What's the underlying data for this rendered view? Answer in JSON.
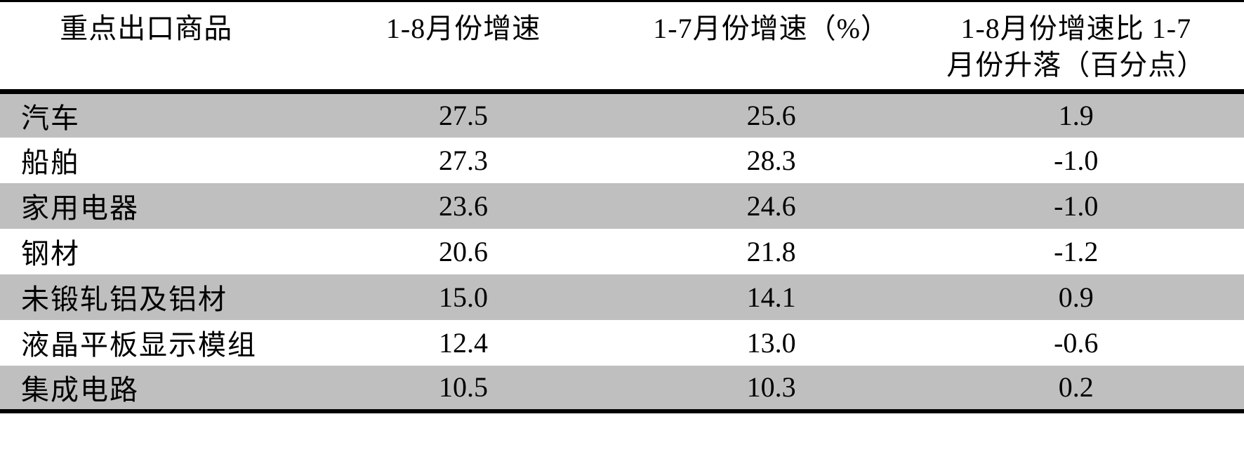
{
  "colors": {
    "row_shade": "#bfbfbf",
    "border": "#000000",
    "background": "#ffffff"
  },
  "table": {
    "headers": {
      "col1": "重点出口商品",
      "col2": "1-8月份增速",
      "col3": "1-7月份增速（%）",
      "col4_line1": "1-8月份增速比 1-7",
      "col4_line2": "月份升落（百分点）"
    },
    "rows": [
      [
        "汽车",
        "27.5",
        "25.6",
        "1.9"
      ],
      [
        "船舶",
        "27.3",
        "28.3",
        "-1.0"
      ],
      [
        "家用电器",
        "23.6",
        "24.6",
        "-1.0"
      ],
      [
        "钢材",
        "20.6",
        "21.8",
        "-1.2"
      ],
      [
        "未锻轧铝及铝材",
        "15.0",
        "14.1",
        "0.9"
      ],
      [
        "液晶平板显示模组",
        "12.4",
        "13.0",
        "-0.6"
      ],
      [
        "集成电路",
        "10.5",
        "10.3",
        "0.2"
      ]
    ]
  },
  "chart_data": {
    "type": "table",
    "title": "",
    "columns": [
      "重点出口商品",
      "1-8月份增速",
      "1-7月份增速（%）",
      "1-8月份增速比1-7月份升落（百分点）"
    ],
    "categories": [
      "汽车",
      "船舶",
      "家用电器",
      "钢材",
      "未锻轧铝及铝材",
      "液晶平板显示模组",
      "集成电路"
    ],
    "series": [
      {
        "name": "1-8月份增速",
        "values": [
          27.5,
          27.3,
          23.6,
          20.6,
          15.0,
          12.4,
          10.5
        ]
      },
      {
        "name": "1-7月份增速（%）",
        "values": [
          25.6,
          28.3,
          24.6,
          21.8,
          14.1,
          13.0,
          10.3
        ]
      },
      {
        "name": "1-8月份增速比1-7月份升落（百分点）",
        "values": [
          1.9,
          -1.0,
          -1.0,
          -1.2,
          0.9,
          -0.6,
          0.2
        ]
      }
    ],
    "layout_hints": {
      "zebra_rows": true,
      "shade_color": "#bfbfbf",
      "first_data_row_shaded": true,
      "thick_rules": [
        "top",
        "below-header",
        "bottom"
      ]
    }
  }
}
